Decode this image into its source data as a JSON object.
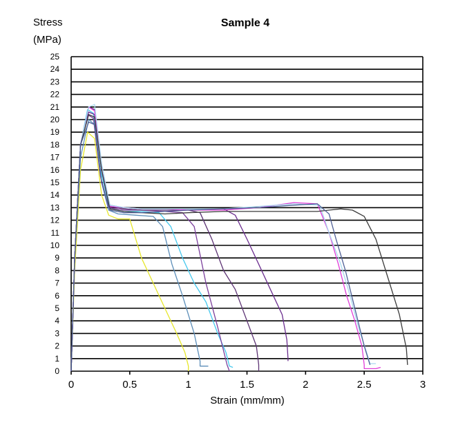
{
  "chart_data": {
    "type": "line",
    "title": "Sample 4",
    "ylabel_line1": "Stress",
    "ylabel_line2": "(MPa)",
    "xlabel": "Strain (mm/mm)",
    "xlim": [
      0,
      3
    ],
    "ylim": [
      0,
      25
    ],
    "xticks": [
      0,
      0.5,
      1,
      1.5,
      2,
      2.5,
      3
    ],
    "xtick_labels": [
      "0",
      "0.5",
      "1",
      "1.5",
      "2",
      "2.5",
      "3"
    ],
    "yticks": [
      0,
      1,
      2,
      3,
      4,
      5,
      6,
      7,
      8,
      9,
      10,
      11,
      12,
      13,
      14,
      15,
      16,
      17,
      18,
      19,
      20,
      21,
      22,
      23,
      24,
      25
    ],
    "ytick_labels": [
      "0",
      "1",
      "2",
      "3",
      "4",
      "5",
      "6",
      "7",
      "8",
      "9",
      "10",
      "11",
      "12",
      "13",
      "14",
      "15",
      "16",
      "17",
      "18",
      "19",
      "20",
      "21",
      "22",
      "23",
      "24",
      "25"
    ],
    "grid": "horizontal",
    "legend": "none",
    "series": [
      {
        "color": "#e6e629",
        "x": [
          0,
          0.03,
          0.08,
          0.14,
          0.2,
          0.26,
          0.32,
          0.4,
          0.5,
          0.6,
          0.7,
          0.8,
          0.9,
          0.97,
          1.0,
          1.0
        ],
        "y": [
          0,
          8,
          16,
          19,
          18.5,
          14,
          12.4,
          12.1,
          12.1,
          9,
          7,
          5,
          3,
          1.5,
          0.4,
          0
        ]
      },
      {
        "color": "#5b8db8",
        "x": [
          0,
          0.03,
          0.08,
          0.15,
          0.2,
          0.26,
          0.32,
          0.4,
          0.55,
          0.7,
          0.78,
          0.86,
          0.95,
          1.05,
          1.1,
          1.1,
          1.17
        ],
        "y": [
          0,
          9,
          17,
          20,
          19.6,
          15,
          12.8,
          12.5,
          12.4,
          12.3,
          11.5,
          8.5,
          6,
          3,
          0.8,
          0.4,
          0.4
        ]
      },
      {
        "color": "#44c8ee",
        "x": [
          0,
          0.03,
          0.08,
          0.14,
          0.19,
          0.25,
          0.33,
          0.45,
          0.6,
          0.75,
          0.85,
          0.95,
          1.05,
          1.15,
          1.25,
          1.32,
          1.35,
          1.38
        ],
        "y": [
          0,
          9,
          18,
          20.8,
          20.5,
          16,
          12.9,
          12.7,
          12.7,
          12.6,
          11.5,
          9,
          7,
          5.5,
          3,
          1.5,
          0.4,
          0.3
        ]
      },
      {
        "color": "#7b3f9c",
        "x": [
          0,
          0.03,
          0.08,
          0.14,
          0.19,
          0.25,
          0.32,
          0.45,
          0.6,
          0.8,
          0.95,
          1.05,
          1.15,
          1.25,
          1.33,
          1.35
        ],
        "y": [
          0,
          9,
          18,
          20.4,
          20.1,
          15.5,
          13.0,
          12.8,
          12.8,
          12.7,
          12.6,
          11.5,
          7,
          3.5,
          0.5,
          0
        ]
      },
      {
        "color": "#5c3273",
        "x": [
          0,
          0.03,
          0.08,
          0.15,
          0.2,
          0.26,
          0.33,
          0.45,
          0.6,
          0.8,
          1.0,
          1.1,
          1.2,
          1.3,
          1.4,
          1.5,
          1.58,
          1.6,
          1.6
        ],
        "y": [
          0,
          9,
          18,
          21,
          20.8,
          16,
          13.1,
          12.9,
          12.8,
          12.8,
          12.8,
          12.6,
          10.5,
          8,
          6.5,
          4,
          2,
          0.5,
          0
        ]
      },
      {
        "color": "#6a2c8e",
        "x": [
          0,
          0.03,
          0.08,
          0.15,
          0.2,
          0.26,
          0.33,
          0.45,
          0.6,
          0.8,
          1.0,
          1.2,
          1.3,
          1.4,
          1.5,
          1.6,
          1.7,
          1.8,
          1.84,
          1.85,
          1.85
        ],
        "y": [
          0,
          9,
          18,
          20.6,
          20.4,
          16,
          13.2,
          13.0,
          12.9,
          12.9,
          12.9,
          12.9,
          12.9,
          12.4,
          10.5,
          8.5,
          6.5,
          4.5,
          2.5,
          1,
          0.8
        ]
      },
      {
        "color": "#e03cd8",
        "x": [
          0,
          0.03,
          0.08,
          0.15,
          0.2,
          0.26,
          0.33,
          0.45,
          0.6,
          0.8,
          1.0,
          1.3,
          1.6,
          1.9,
          2.1,
          2.2,
          2.28,
          2.35,
          2.42,
          2.48,
          2.5,
          2.5,
          2.6,
          2.64
        ],
        "y": [
          0,
          9,
          18,
          21,
          20.7,
          16,
          13.1,
          13.0,
          12.9,
          12.9,
          12.8,
          12.8,
          13.0,
          13.4,
          13.3,
          11,
          8.5,
          6,
          4,
          2,
          0.5,
          0.2,
          0.2,
          0.3
        ]
      },
      {
        "color": "#a9d8ef",
        "x": [
          0,
          0.03,
          0.08,
          0.15,
          0.2,
          0.26,
          0.33,
          0.45,
          0.6,
          0.8,
          1.0,
          1.3,
          1.6,
          1.9,
          2.12,
          2.2,
          2.3,
          2.38,
          2.45,
          2.52,
          2.55,
          2.6
        ],
        "y": [
          0,
          9,
          18,
          21,
          21.2,
          16.5,
          13.2,
          13.0,
          12.9,
          12.9,
          12.9,
          12.9,
          13.1,
          13.3,
          13.2,
          11,
          8.5,
          6,
          3.5,
          1.5,
          0.6,
          0.6
        ]
      },
      {
        "color": "#3a3a3a",
        "x": [
          0,
          0.03,
          0.08,
          0.15,
          0.2,
          0.26,
          0.33,
          0.45,
          0.6,
          0.8,
          1.0,
          1.3,
          1.6,
          1.9,
          2.1,
          2.2,
          2.3,
          2.4,
          2.5,
          2.6,
          2.7,
          2.8,
          2.86,
          2.87
        ],
        "y": [
          0,
          9,
          18,
          20.4,
          20.2,
          16,
          12.9,
          12.7,
          12.6,
          12.5,
          12.6,
          12.7,
          12.7,
          12.7,
          12.7,
          12.8,
          12.9,
          12.8,
          12.3,
          10.5,
          7.5,
          4.5,
          1.8,
          0.5
        ]
      },
      {
        "color": "#4e5f96",
        "x": [
          0,
          0.03,
          0.08,
          0.15,
          0.2,
          0.26,
          0.33,
          0.45,
          0.6,
          0.8,
          1.0,
          1.3,
          1.6,
          1.9,
          2.1,
          2.2,
          2.26,
          2.34,
          2.42,
          2.5,
          2.55
        ],
        "y": [
          0,
          9,
          18,
          19.8,
          19.6,
          15,
          12.8,
          12.6,
          12.6,
          12.7,
          12.8,
          12.9,
          13.0,
          13.2,
          13.3,
          12.5,
          10.5,
          8,
          5,
          2,
          0.5
        ]
      }
    ]
  },
  "plot_colors": {
    "grid": "#000000",
    "background": "#ffffff"
  }
}
